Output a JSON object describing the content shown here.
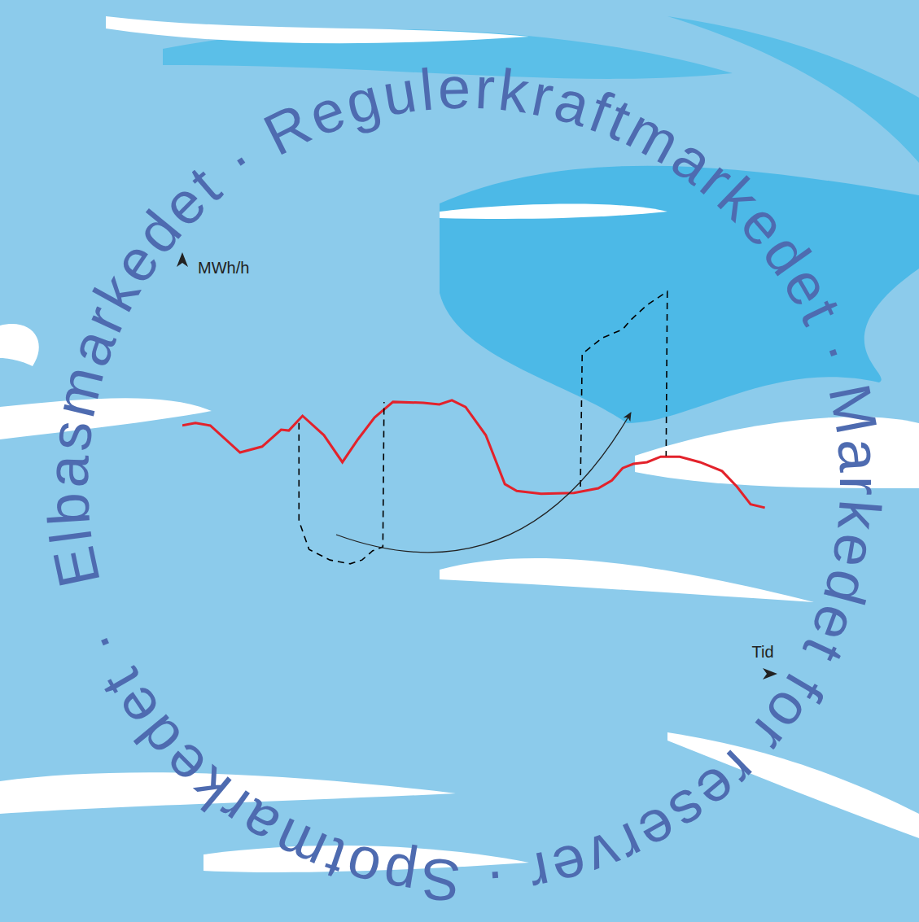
{
  "chart_data": {
    "type": "line",
    "x_label": "Tid",
    "y_label": "MWh/h",
    "xlim": [
      0,
      100
    ],
    "ylim": [
      0,
      100
    ],
    "xticks": [],
    "yticks": [],
    "tick_labels": false,
    "grid": false,
    "annotations": [
      "Elbasmarkedet · Regulerkraftmarkedet · Markedet for reserver · Spotmarkedet ·"
    ],
    "series": [
      {
        "color": "#e3222b",
        "line_style": "solid",
        "x": [
          0,
          2.2,
          4.7,
          9.7,
          13.4,
          16.6,
          17.9,
          20.2,
          23.8,
          26.9,
          29.5,
          32.3,
          35.4,
          40.5,
          43.2,
          45.3,
          47.6,
          51.0,
          54.2,
          56.2,
          60.3,
          65.8,
          69.9,
          72.2,
          74.0,
          75.8,
          78.1,
          80.4,
          83.6,
          87.0,
          90.7,
          93.2,
          95.5,
          97.9
        ],
        "values": [
          58.9,
          59.5,
          58.9,
          52.5,
          53.9,
          57.9,
          57.7,
          61.2,
          56.6,
          50.2,
          55.6,
          60.8,
          64.5,
          64.3,
          63.9,
          64.9,
          63.3,
          56.6,
          45.0,
          43.4,
          42.7,
          42.9,
          44.0,
          45.9,
          48.8,
          49.8,
          50.2,
          51.5,
          51.5,
          50.2,
          48.1,
          44.4,
          40.2,
          39.4
        ]
      },
      {
        "color": "#000000",
        "line_style": "dashed",
        "x": [
          19.6,
          19.6,
          21.3,
          24.8,
          28.2,
          30.2,
          32.0,
          33.7,
          33.9
        ],
        "values": [
          59.5,
          36.3,
          29.5,
          27.0,
          26.1,
          27.0,
          29.2,
          30.1,
          64.5
        ]
      },
      {
        "color": "#000000",
        "line_style": "dashed",
        "x": [
          66.9,
          67.2,
          70.6,
          74.0,
          75.4,
          78.1,
          81.5,
          81.3
        ],
        "values": [
          44.4,
          75.9,
          79.7,
          81.7,
          84.0,
          87.5,
          90.7,
          51.7
        ]
      }
    ]
  }
}
